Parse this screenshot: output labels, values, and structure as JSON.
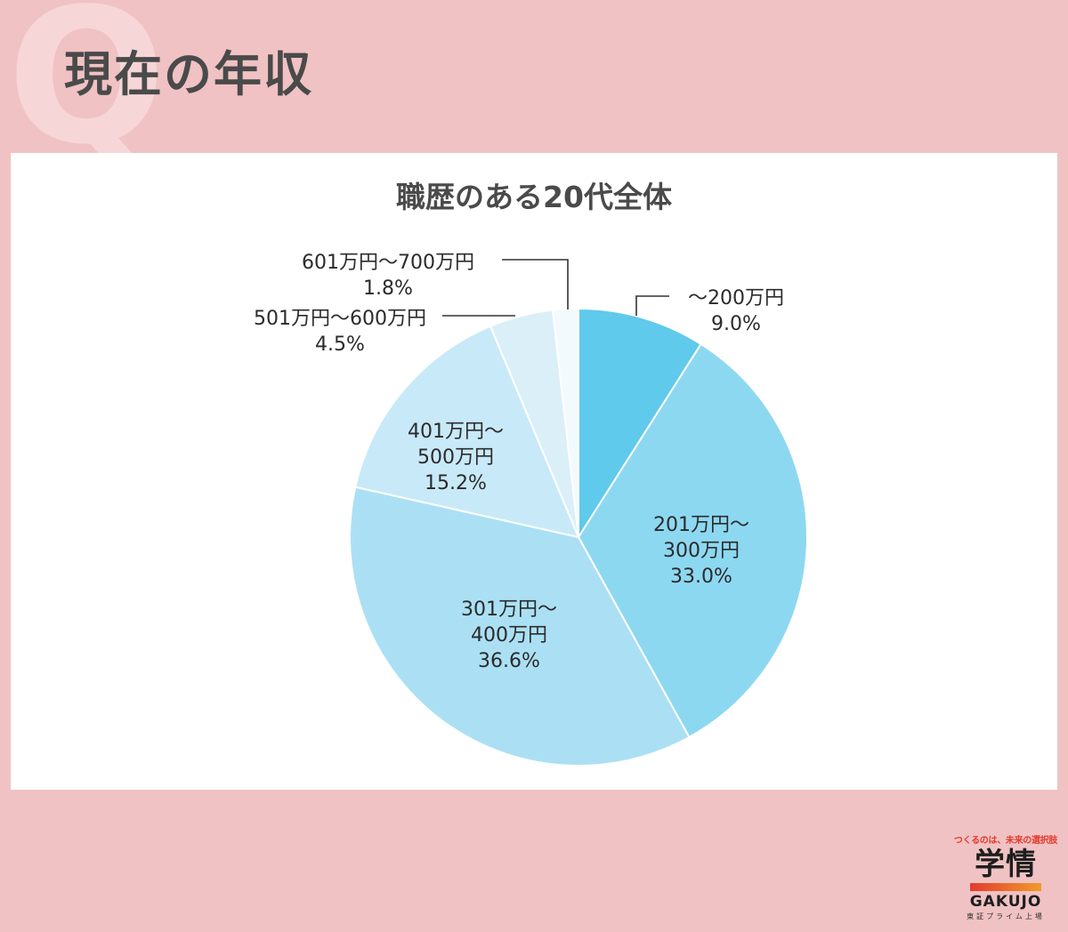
{
  "header": {
    "q_mark": "Q",
    "title": "現在の年収"
  },
  "logo": {
    "tagline": "つくるのは、未来の選択肢",
    "name": "学情",
    "wordmark": "GAKUJO",
    "subline": "東証プライム上場"
  },
  "colors": {
    "background": "#f0c2c3",
    "slices": [
      "#5fcaeb",
      "#8dd8f1",
      "#abe0f4",
      "#c8e9f8",
      "#dbeff9",
      "#f3fafd"
    ]
  },
  "chart_data": {
    "type": "pie",
    "title": "職歴のある20代全体",
    "series": [
      {
        "label_lines": [
          "～200万円"
        ],
        "percent_text": "9.0%",
        "value": 9.0
      },
      {
        "label_lines": [
          "201万円～",
          "300万円"
        ],
        "percent_text": "33.0%",
        "value": 33.0
      },
      {
        "label_lines": [
          "301万円～",
          "400万円"
        ],
        "percent_text": "36.6%",
        "value": 36.6
      },
      {
        "label_lines": [
          "401万円～",
          "500万円"
        ],
        "percent_text": "15.2%",
        "value": 15.2
      },
      {
        "label_lines": [
          "501万円～600万円"
        ],
        "percent_text": "4.5%",
        "value": 4.5
      },
      {
        "label_lines": [
          "601万円～700万円"
        ],
        "percent_text": "1.8%",
        "value": 1.8
      }
    ],
    "start": "12 o'clock",
    "direction": "clockwise",
    "legend": "none"
  }
}
